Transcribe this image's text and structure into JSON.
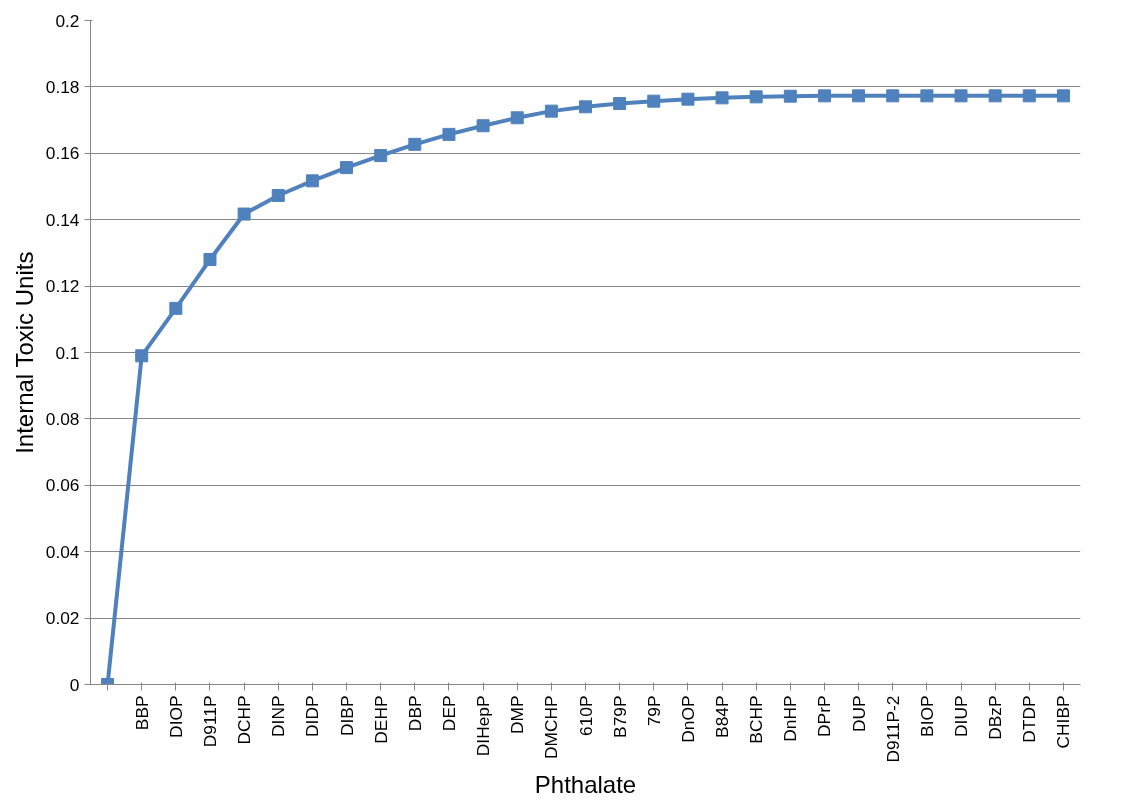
{
  "chart_data": {
    "type": "line",
    "xlabel": "Phthalate",
    "ylabel": "Internal Toxic Units",
    "categories": [
      null,
      "BBP",
      "DIOP",
      "D911P",
      "DCHP",
      "DINP",
      "DIDP",
      "DIBP",
      "DEHP",
      "DBP",
      "DEP",
      "DIHepP",
      "DMP",
      "DMCHP",
      "610P",
      "B79P",
      "79P",
      "DnOP",
      "B84P",
      "BCHP",
      "DnHP",
      "DPrP",
      "DUP",
      "D911P-2",
      "BIOP",
      "DIUP",
      "DBzP",
      "DTDP",
      "CHIBP"
    ],
    "series": [
      {
        "color": "#4f81bd",
        "values": [
          0,
          0.099,
          0.1133,
          0.128,
          0.1417,
          0.1473,
          0.1517,
          0.1557,
          0.1593,
          0.1627,
          0.1657,
          0.1683,
          0.1707,
          0.1727,
          0.174,
          0.175,
          0.1757,
          0.1763,
          0.1767,
          0.177,
          0.1772,
          0.1773,
          0.1773,
          0.1773,
          0.1773,
          0.1773,
          0.1773,
          0.1773,
          0.1773
        ]
      }
    ],
    "ylim": [
      0,
      0.2
    ],
    "yticks": [
      0,
      0.02,
      0.04,
      0.06,
      0.08,
      0.1,
      0.12,
      0.14,
      0.16,
      0.18,
      0.2
    ],
    "grid": "y",
    "marker": "square",
    "line_style": "solid"
  }
}
